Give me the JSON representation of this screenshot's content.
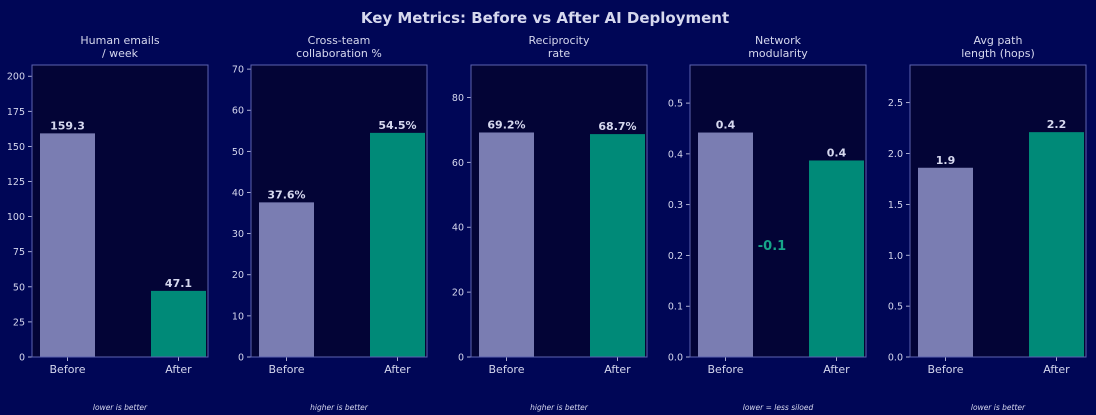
{
  "title": "Key Metrics: Before vs After AI Deployment",
  "colors": {
    "background": "#000656",
    "plot_bg": "#030436",
    "spine": "#5c63b0",
    "text": "#d6d8ee",
    "before": "#7a7db2",
    "after": "#008a78",
    "delta": "#17a689"
  },
  "chart_data": [
    {
      "type": "bar",
      "title": "Human emails\n/ week",
      "categories": [
        "Before",
        "After"
      ],
      "values": [
        159.3,
        47.1
      ],
      "value_labels": [
        "159.3",
        "47.1"
      ],
      "ylim": [
        0,
        208
      ],
      "yticks": [
        0,
        25,
        50,
        75,
        100,
        125,
        150,
        175,
        200
      ],
      "ytick_labels": [
        "0",
        "25",
        "50",
        "75",
        "100",
        "125",
        "150",
        "175",
        "200"
      ],
      "footnote": "lower is better",
      "grid": false
    },
    {
      "type": "bar",
      "title": "Cross-team\ncollaboration %",
      "categories": [
        "Before",
        "After"
      ],
      "values": [
        37.6,
        54.5
      ],
      "value_labels": [
        "37.6%",
        "54.5%"
      ],
      "ylim": [
        0,
        71
      ],
      "yticks": [
        0,
        10,
        20,
        30,
        40,
        50,
        60,
        70
      ],
      "ytick_labels": [
        "0",
        "10",
        "20",
        "30",
        "40",
        "50",
        "60",
        "70"
      ],
      "footnote": "higher is better",
      "grid": false
    },
    {
      "type": "bar",
      "title": "Reciprocity\nrate",
      "categories": [
        "Before",
        "After"
      ],
      "values": [
        69.2,
        68.7
      ],
      "value_labels": [
        "69.2%",
        "68.7%"
      ],
      "ylim": [
        0,
        90
      ],
      "yticks": [
        0,
        20,
        40,
        60,
        80
      ],
      "ytick_labels": [
        "0",
        "20",
        "40",
        "60",
        "80"
      ],
      "footnote": "higher is better",
      "grid": false
    },
    {
      "type": "bar",
      "title": "Network\nmodularity",
      "categories": [
        "Before",
        "After"
      ],
      "values": [
        0.442,
        0.387
      ],
      "value_labels": [
        "0.4",
        "0.4"
      ],
      "ylim": [
        0,
        0.575
      ],
      "yticks": [
        0,
        0.1,
        0.2,
        0.3,
        0.4,
        0.5
      ],
      "ytick_labels": [
        "0.0",
        "0.1",
        "0.2",
        "0.3",
        "0.4",
        "0.5"
      ],
      "annotation": "-0.1",
      "footnote": "lower = less siloed",
      "grid": false
    },
    {
      "type": "bar",
      "title": "Avg path\nlength (hops)",
      "categories": [
        "Before",
        "After"
      ],
      "values": [
        1.86,
        2.21
      ],
      "value_labels": [
        "1.9",
        "2.2"
      ],
      "ylim": [
        0,
        2.87
      ],
      "yticks": [
        0,
        0.5,
        1.0,
        1.5,
        2.0,
        2.5
      ],
      "ytick_labels": [
        "0.0",
        "0.5",
        "1.0",
        "1.5",
        "2.0",
        "2.5"
      ],
      "footnote": "lower is better",
      "grid": false
    }
  ]
}
